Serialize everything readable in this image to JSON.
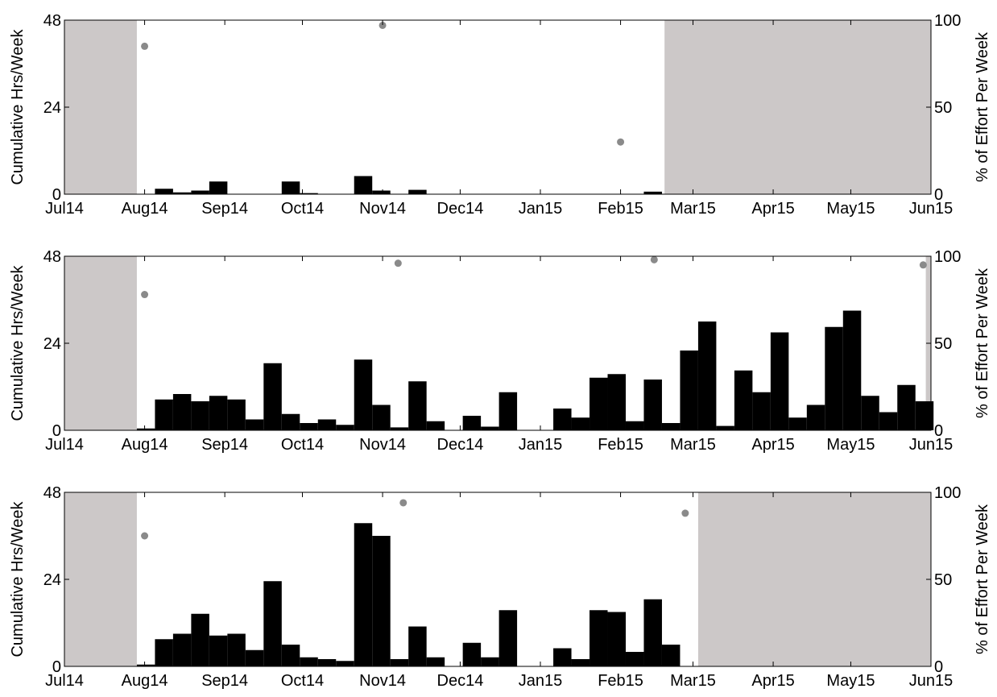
{
  "chart_data": [
    {
      "type": "bar",
      "title": "",
      "ylabel_left": "Cumulative Hrs/Week",
      "ylabel_right": "% of Effort Per Week",
      "ylim_left": [
        0,
        48
      ],
      "ylim_right": [
        0,
        100
      ],
      "yticks_left": [
        "0",
        "24",
        "48"
      ],
      "yticks_right": [
        "0",
        "50",
        "100"
      ],
      "xlim": [
        "2014-07-01",
        "2015-06-01"
      ],
      "xtick_labels": [
        "Jul14",
        "Aug14",
        "Sep14",
        "Oct14",
        "Nov14",
        "Dec14",
        "Jan15",
        "Feb15",
        "Mar15",
        "Apr15",
        "May15",
        "Jun15"
      ],
      "xtick_dates": [
        "2014-07-01",
        "2014-08-01",
        "2014-09-01",
        "2014-10-01",
        "2014-11-01",
        "2014-12-01",
        "2015-01-01",
        "2015-02-01",
        "2015-03-01",
        "2015-04-01",
        "2015-05-01",
        "2015-06-01"
      ],
      "no_effort_periods": [
        [
          "2014-07-01",
          "2014-07-29"
        ],
        [
          "2015-02-18",
          "2015-06-01"
        ]
      ],
      "bar_week_starts": [
        "2014-08-05",
        "2014-08-12",
        "2014-08-19",
        "2014-08-26",
        "2014-09-23",
        "2014-09-30",
        "2014-10-21",
        "2014-10-28",
        "2014-11-11",
        "2015-02-10"
      ],
      "bar_values": [
        1.5,
        0.5,
        1,
        3.5,
        3.5,
        0.3,
        5,
        1,
        1.2,
        0.7
      ],
      "effort_dates": [
        "2014-08-01",
        "2014-11-01",
        "2015-02-01"
      ],
      "effort_percent": [
        85,
        97,
        30
      ]
    },
    {
      "type": "bar",
      "title": "",
      "ylabel_left": "Cumulative Hrs/Week",
      "ylabel_right": "% of Effort Per Week",
      "ylim_left": [
        0,
        48
      ],
      "ylim_right": [
        0,
        100
      ],
      "yticks_left": [
        "0",
        "24",
        "48"
      ],
      "yticks_right": [
        "0",
        "50",
        "100"
      ],
      "xlim": [
        "2014-07-01",
        "2015-06-01"
      ],
      "xtick_labels": [
        "Jul14",
        "Aug14",
        "Sep14",
        "Oct14",
        "Nov14",
        "Dec14",
        "Jan15",
        "Feb15",
        "Mar15",
        "Apr15",
        "May15",
        "Jun15"
      ],
      "xtick_dates": [
        "2014-07-01",
        "2014-08-01",
        "2014-09-01",
        "2014-10-01",
        "2014-11-01",
        "2014-12-01",
        "2015-01-01",
        "2015-02-01",
        "2015-03-01",
        "2015-04-01",
        "2015-05-01",
        "2015-06-01"
      ],
      "no_effort_periods": [
        [
          "2014-07-01",
          "2014-07-29"
        ],
        [
          "2015-05-30",
          "2015-06-01"
        ]
      ],
      "bar_week_starts": [
        "2014-07-29",
        "2014-08-05",
        "2014-08-12",
        "2014-08-19",
        "2014-08-26",
        "2014-09-02",
        "2014-09-09",
        "2014-09-16",
        "2014-09-23",
        "2014-09-30",
        "2014-10-07",
        "2014-10-14",
        "2014-10-21",
        "2014-10-28",
        "2014-11-04",
        "2014-11-11",
        "2014-11-18",
        "2014-11-25",
        "2014-12-02",
        "2014-12-09",
        "2014-12-16",
        "2014-12-23",
        "2014-12-30",
        "2015-01-06",
        "2015-01-13",
        "2015-01-20",
        "2015-01-27",
        "2015-02-03",
        "2015-02-10",
        "2015-02-17",
        "2015-02-24",
        "2015-03-03",
        "2015-03-10",
        "2015-03-17",
        "2015-03-24",
        "2015-03-31",
        "2015-04-07",
        "2015-04-14",
        "2015-04-21",
        "2015-04-28",
        "2015-05-05",
        "2015-05-12",
        "2015-05-19",
        "2015-05-26"
      ],
      "bar_values": [
        0.5,
        8.5,
        10,
        8,
        9.5,
        8.5,
        3,
        18.5,
        4.5,
        2,
        3,
        1.5,
        19.5,
        7,
        0.8,
        13.5,
        2.5,
        0,
        4,
        1,
        10.5,
        0,
        0,
        6,
        3.5,
        14.5,
        15.5,
        2.5,
        14,
        2,
        22,
        30,
        1.2,
        16.5,
        10.5,
        27,
        3.5,
        7,
        28.5,
        33,
        9.5,
        5,
        12.5,
        8
      ],
      "effort_dates": [
        "2014-08-01",
        "2014-11-07",
        "2015-02-14",
        "2015-05-29"
      ],
      "effort_percent": [
        78,
        96,
        98,
        95
      ]
    },
    {
      "type": "bar",
      "title": "",
      "ylabel_left": "Cumulative Hrs/Week",
      "ylabel_right": "% of Effort Per Week",
      "ylim_left": [
        0,
        48
      ],
      "ylim_right": [
        0,
        100
      ],
      "yticks_left": [
        "0",
        "24",
        "48"
      ],
      "yticks_right": [
        "0",
        "50",
        "100"
      ],
      "xlim": [
        "2014-07-01",
        "2015-06-01"
      ],
      "xtick_labels": [
        "Jul14",
        "Aug14",
        "Sep14",
        "Oct14",
        "Nov14",
        "Dec14",
        "Jan15",
        "Feb15",
        "Mar15",
        "Apr15",
        "May15",
        "Jun15"
      ],
      "xtick_dates": [
        "2014-07-01",
        "2014-08-01",
        "2014-09-01",
        "2014-10-01",
        "2014-11-01",
        "2014-12-01",
        "2015-01-01",
        "2015-02-01",
        "2015-03-01",
        "2015-04-01",
        "2015-05-01",
        "2015-06-01"
      ],
      "no_effort_periods": [
        [
          "2014-07-01",
          "2014-07-29"
        ],
        [
          "2015-03-03",
          "2015-06-01"
        ]
      ],
      "bar_week_starts": [
        "2014-07-29",
        "2014-08-05",
        "2014-08-12",
        "2014-08-19",
        "2014-08-26",
        "2014-09-02",
        "2014-09-09",
        "2014-09-16",
        "2014-09-23",
        "2014-09-30",
        "2014-10-07",
        "2014-10-14",
        "2014-10-21",
        "2014-10-28",
        "2014-11-04",
        "2014-11-11",
        "2014-11-18",
        "2014-11-25",
        "2014-12-02",
        "2014-12-09",
        "2014-12-16",
        "2014-12-23",
        "2014-12-30",
        "2015-01-06",
        "2015-01-13",
        "2015-01-20",
        "2015-01-27",
        "2015-02-03",
        "2015-02-10",
        "2015-02-17",
        "2015-02-24"
      ],
      "bar_values": [
        0.5,
        7.5,
        9,
        14.5,
        8.5,
        9,
        4.5,
        23.5,
        6,
        2.5,
        2,
        1.5,
        39.5,
        36,
        2,
        11,
        2.5,
        0,
        6.5,
        2.5,
        15.5,
        0,
        0,
        5,
        2,
        15.5,
        15,
        4,
        18.5,
        6,
        0
      ],
      "effort_dates": [
        "2014-08-01",
        "2014-11-09",
        "2015-02-26"
      ],
      "effort_percent": [
        75,
        94,
        88
      ]
    }
  ],
  "colors": {
    "bar": "#000000",
    "no_effort_shade": "#ccc8c8",
    "effort_marker": "#8a8a8a",
    "axis": "#000000"
  }
}
